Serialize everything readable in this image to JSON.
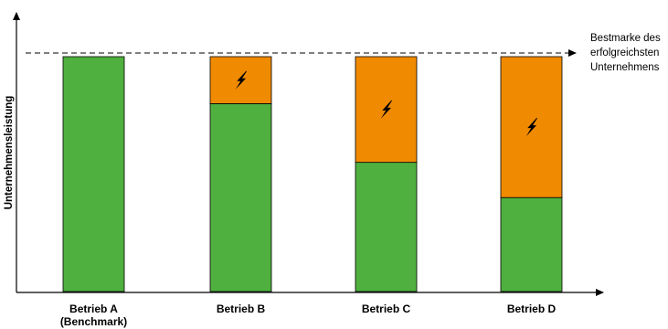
{
  "chart_data": {
    "type": "bar",
    "stacked": true,
    "ylabel": "Unternehmensleistung",
    "xlabel": "",
    "categories": [
      {
        "line1": "Betrieb A",
        "line2": "(Benchmark)"
      },
      {
        "line1": "Betrieb B",
        "line2": ""
      },
      {
        "line1": "Betrieb C",
        "line2": ""
      },
      {
        "line1": "Betrieb D",
        "line2": ""
      }
    ],
    "series": [
      {
        "values": [
          100,
          80,
          55,
          40
        ],
        "color": "#4fb03f"
      },
      {
        "values": [
          0,
          20,
          45,
          60
        ],
        "color": "#f08a00"
      }
    ],
    "gap_marker_icon": "lightning-icon",
    "benchmark": {
      "value": 100,
      "line_style": "dashed",
      "label_lines": [
        "Bestmarke des",
        "erfolgreichsten",
        "Unternehmens"
      ]
    },
    "ylim": [
      0,
      100
    ],
    "y_ticks": false,
    "grid": false,
    "legend": "none"
  }
}
